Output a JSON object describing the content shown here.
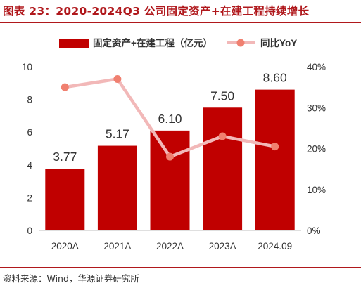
{
  "title": "图表 23：2020-2024Q3 公司固定资产+在建工程持续增长",
  "source": "资料来源：Wind，华源证券研究所",
  "colors": {
    "bar": "#c00000",
    "line": "#f2b8b8",
    "marker": "#f08070",
    "accent": "#b0181c"
  },
  "chart_data": {
    "type": "bar",
    "categories": [
      "2020A",
      "2021A",
      "2022A",
      "2023A",
      "2024.09"
    ],
    "series": [
      {
        "name": "固定资产+在建工程（亿元）",
        "type": "bar",
        "axis": "left",
        "values": [
          3.77,
          5.17,
          6.1,
          7.5,
          8.6
        ],
        "labels": [
          "3.77",
          "5.17",
          "6.10",
          "7.50",
          "8.60"
        ]
      },
      {
        "name": "同比YoY",
        "type": "line",
        "axis": "right",
        "values": [
          35,
          37,
          18,
          23,
          20.5
        ]
      }
    ],
    "y_left": {
      "ylim": [
        0,
        10
      ],
      "ticks": [
        "0",
        "2",
        "4",
        "6",
        "8",
        "10"
      ]
    },
    "y_right": {
      "ylim": [
        0,
        40
      ],
      "ticks": [
        "0%",
        "10%",
        "20%",
        "30%",
        "40%"
      ]
    },
    "grid": false,
    "legend_position": "top"
  }
}
